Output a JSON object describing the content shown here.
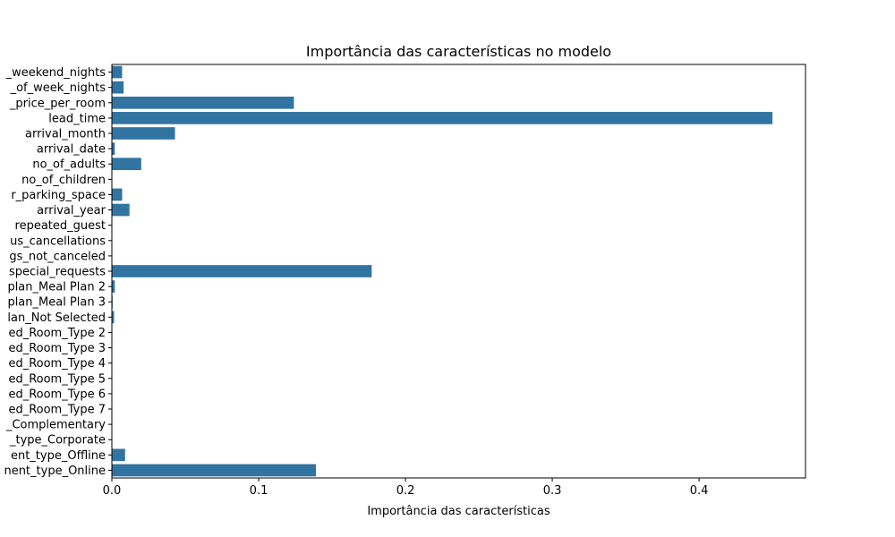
{
  "chart_data": {
    "type": "bar",
    "orientation": "horizontal",
    "title": "Importância das características no modelo",
    "xlabel": "Importância das características",
    "ylabel": "",
    "xlim": [
      0,
      0.4725
    ],
    "xticks": [
      0.0,
      0.1,
      0.2,
      0.3,
      0.4
    ],
    "xtick_labels": [
      "0.0",
      "0.1",
      "0.2",
      "0.3",
      "0.4"
    ],
    "grid": false,
    "bar_color": "#3274a1",
    "categories": [
      "_weekend_nights",
      "_of_week_nights",
      "_price_per_room",
      "lead_time",
      "arrival_month",
      "arrival_date",
      "no_of_adults",
      "no_of_children",
      "r_parking_space",
      "arrival_year",
      "repeated_guest",
      "us_cancellations",
      "gs_not_canceled",
      "special_requests",
      "plan_Meal Plan 2",
      "plan_Meal Plan 3",
      "lan_Not Selected",
      "ed_Room_Type 2",
      "ed_Room_Type 3",
      "ed_Room_Type 4",
      "ed_Room_Type 5",
      "ed_Room_Type 6",
      "ed_Room_Type 7",
      "_Complementary",
      "_type_Corporate",
      "ent_type_Offline",
      "nent_type_Online"
    ],
    "values": [
      0.007,
      0.008,
      0.124,
      0.45,
      0.043,
      0.002,
      0.02,
      0.0,
      0.007,
      0.012,
      0.0,
      0.0,
      0.0,
      0.177,
      0.002,
      0.0005,
      0.0015,
      0.0,
      0.0,
      0.0,
      0.0,
      0.0,
      0.0,
      0.0,
      0.0,
      0.009,
      0.139
    ]
  }
}
